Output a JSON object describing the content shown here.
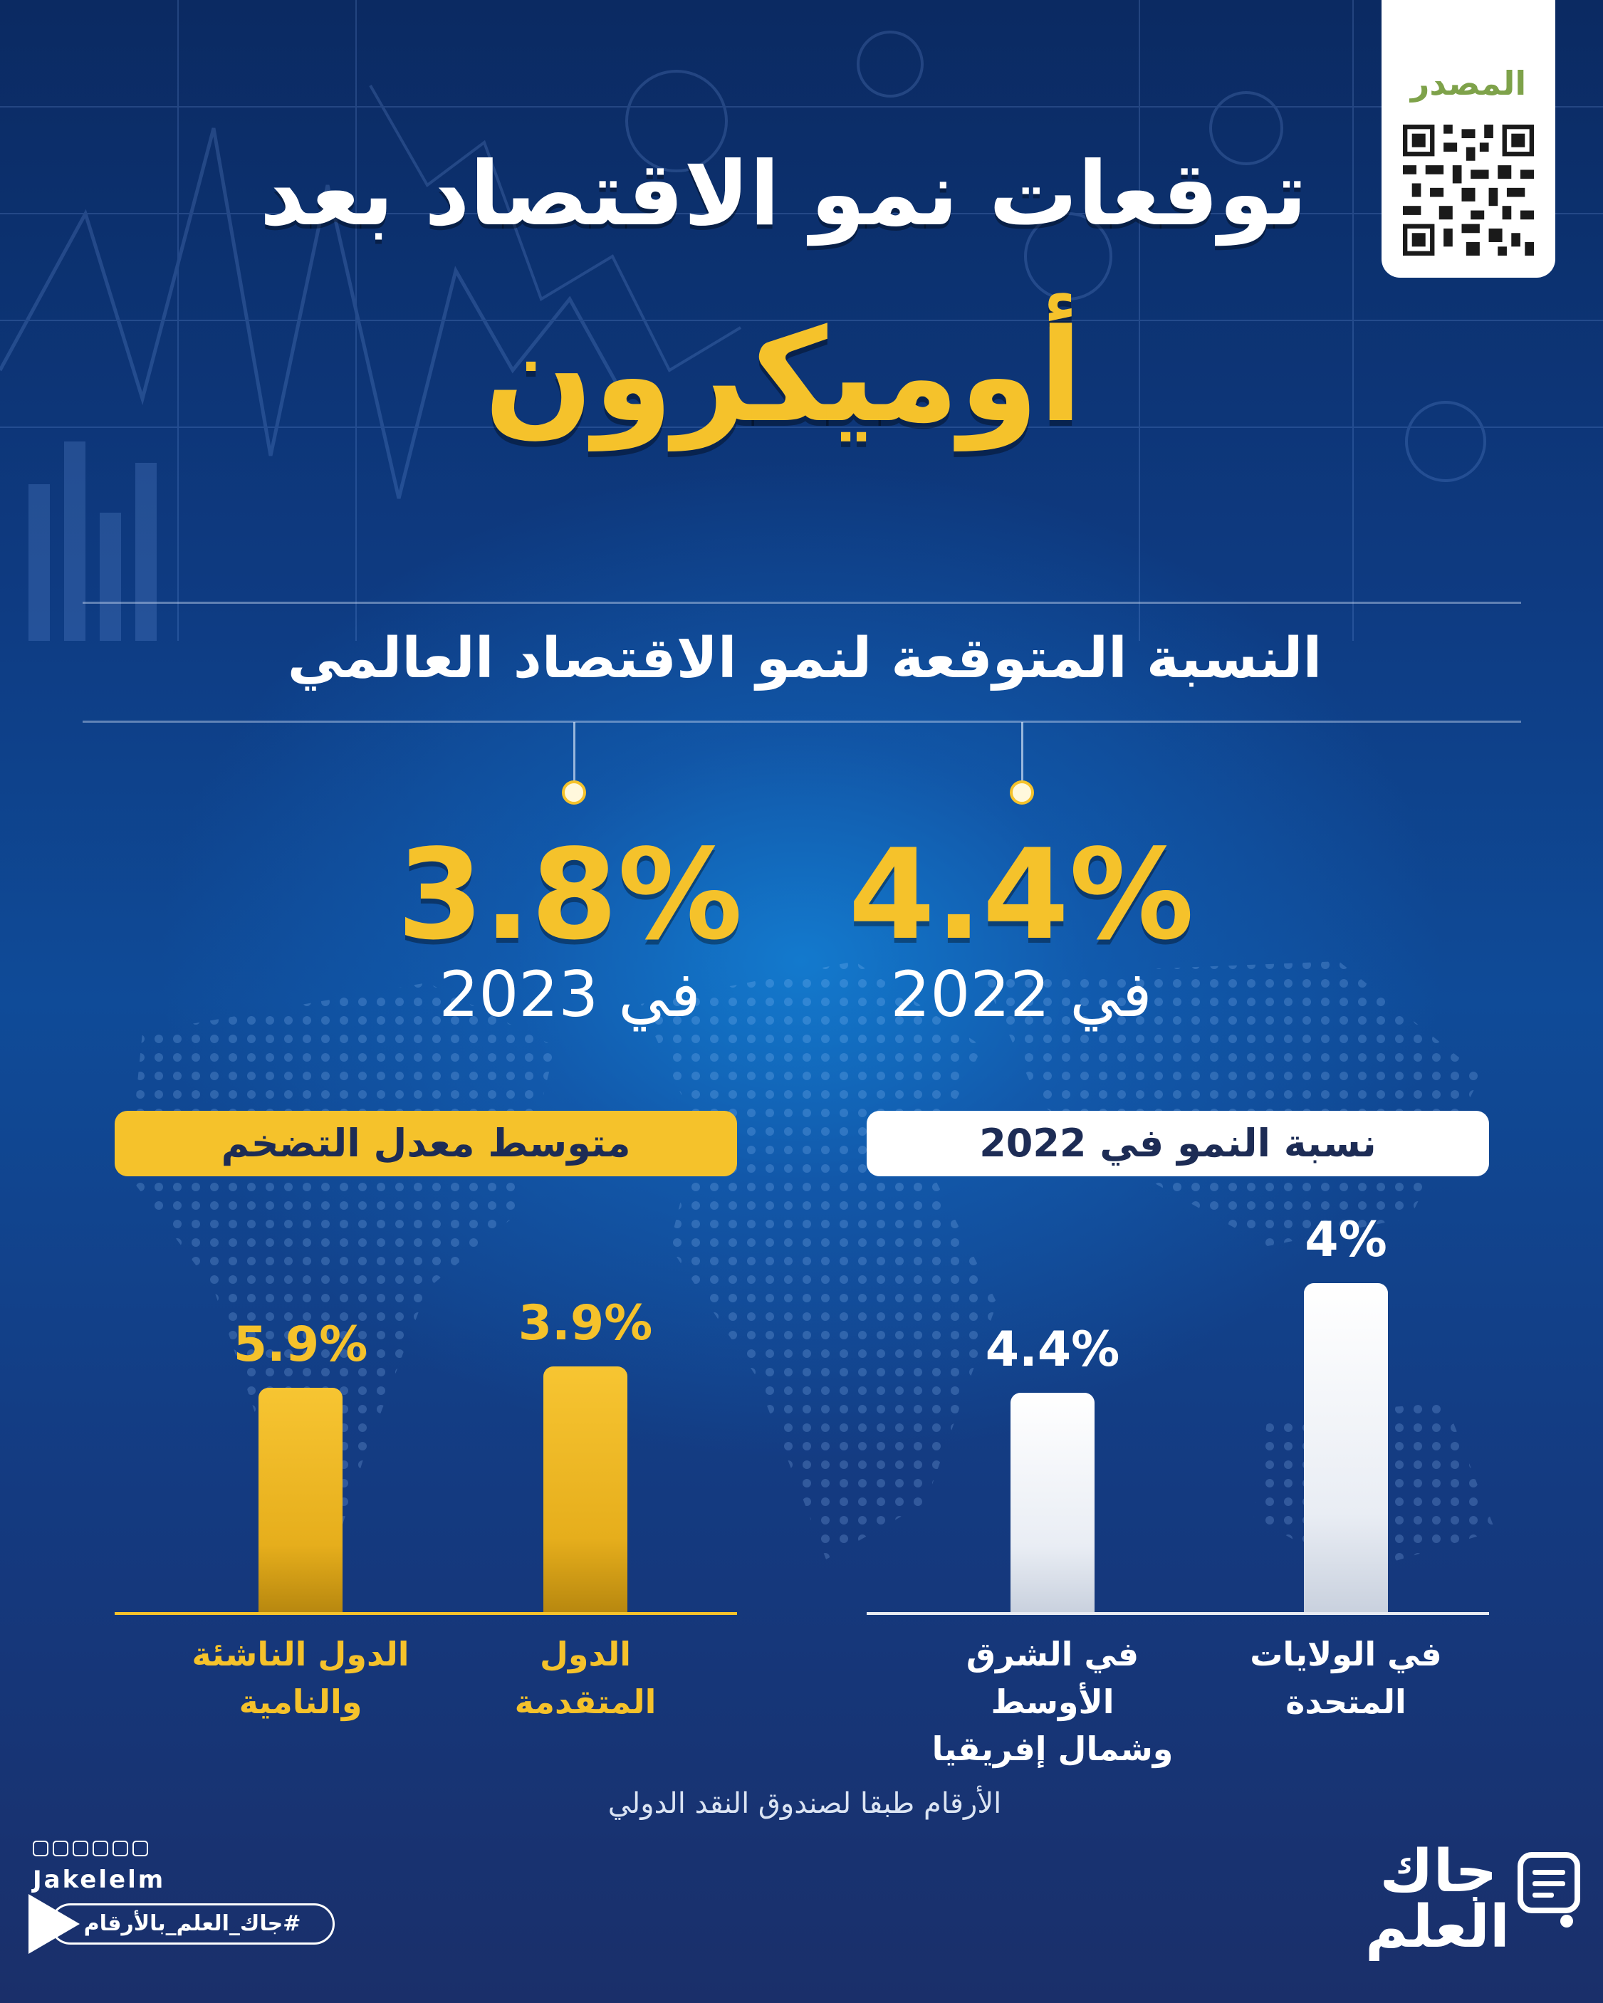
{
  "source": {
    "label": "المصدر"
  },
  "title": {
    "line1": "توقعات نمو الاقتصاد بعد",
    "line2": "أوميكرون"
  },
  "section_title": "النسبة المتوقعة لنمو الاقتصاد العالمي",
  "global_forecast": [
    {
      "value": "4.4%",
      "year_label": "في 2022"
    },
    {
      "value": "3.8%",
      "year_label": "في 2023"
    }
  ],
  "colors": {
    "accent": "#f5c22b",
    "background": "#0f4b98",
    "white": "#ffffff",
    "source_green": "#7ea24a"
  },
  "chart_data": [
    {
      "type": "bar",
      "title": "نسبة النمو في 2022",
      "categories": [
        "في الولايات المتحدة",
        "في الشرق الأوسط وشمال إفريقيا"
      ],
      "category_lines": [
        [
          "في الولايات",
          "المتحدة"
        ],
        [
          "في الشرق الأوسط",
          "وشمال إفريقيا"
        ]
      ],
      "values": [
        4,
        4.4
      ],
      "value_labels": [
        "4%",
        "4.4%"
      ],
      "unit": "%"
    },
    {
      "type": "bar",
      "title": "متوسط معدل التضخم",
      "categories": [
        "الدول المتقدمة",
        "الدول الناشئة والنامية"
      ],
      "category_lines": [
        [
          "الدول",
          "المتقدمة"
        ],
        [
          "الدول الناشئة",
          "والنامية"
        ]
      ],
      "values": [
        3.9,
        5.9
      ],
      "value_labels": [
        "3.9%",
        "5.9%"
      ],
      "unit": "%"
    }
  ],
  "footnote": "الأرقام طبقا لصندوق النقد الدولي",
  "footer": {
    "handle": "Jakelelm",
    "hashtag": "#جاك_العلم_بالأرقام",
    "brand_line1": "جاك",
    "brand_line2": "العلم",
    "social_icons": [
      "facebook-icon",
      "instagram-icon",
      "linkedin-icon",
      "snapchat-icon",
      "twitter-icon",
      "telegram-icon"
    ]
  }
}
